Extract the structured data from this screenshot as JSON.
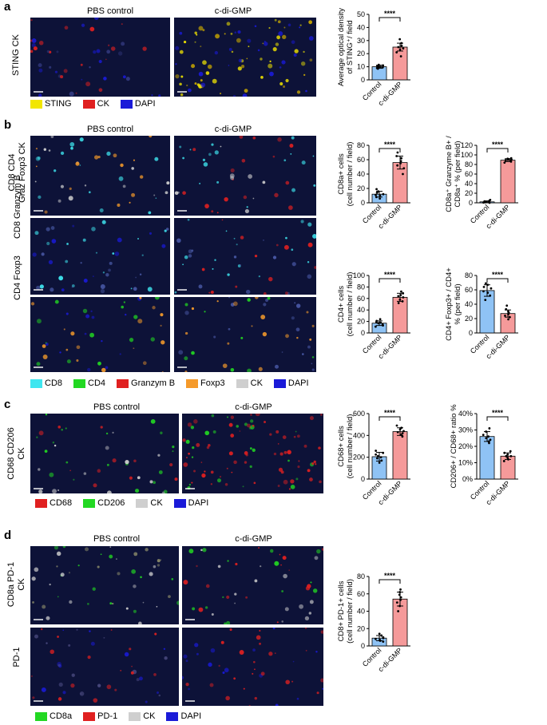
{
  "panels": {
    "a": {
      "letter": "a",
      "col_titles": [
        "PBS control",
        "c-di-GMP"
      ],
      "row_labels": [
        "STING CK"
      ],
      "legend": [
        {
          "label": "STING",
          "color": "#f2e600"
        },
        {
          "label": "CK",
          "color": "#e02020"
        },
        {
          "label": "DAPI",
          "color": "#1a1ad8"
        }
      ]
    },
    "b": {
      "letter": "b",
      "col_titles": [
        "PBS control",
        "c-di-GMP"
      ],
      "row_labels": [
        "CD8 CD4\nGraz Foxp3 CK",
        "CD8 Granzym B",
        "CD4 Foxp3"
      ],
      "legend": [
        {
          "label": "CD8",
          "color": "#3fe6f0"
        },
        {
          "label": "CD4",
          "color": "#22d822"
        },
        {
          "label": "Granzym B",
          "color": "#e02020"
        },
        {
          "label": "Foxp3",
          "color": "#f59a2a"
        },
        {
          "label": "CK",
          "color": "#cfcfcf"
        },
        {
          "label": "DAPI",
          "color": "#1a1ad8"
        }
      ]
    },
    "c": {
      "letter": "c",
      "col_titles": [
        "PBS control",
        "c-di-GMP"
      ],
      "row_labels": [
        "CD68 CD206\nCK"
      ],
      "legend": [
        {
          "label": "CD68",
          "color": "#e02020"
        },
        {
          "label": "CD206",
          "color": "#22d822"
        },
        {
          "label": "CK",
          "color": "#cfcfcf"
        },
        {
          "label": "DAPI",
          "color": "#1a1ad8"
        }
      ]
    },
    "d": {
      "letter": "d",
      "col_titles": [
        "PBS control",
        "c-di-GMP"
      ],
      "row_labels": [
        "CD8a PD-1\nCK",
        "PD-1"
      ],
      "legend": [
        {
          "label": "CD8a",
          "color": "#22d822"
        },
        {
          "label": "PD-1",
          "color": "#e02020"
        },
        {
          "label": "CK",
          "color": "#cfcfcf"
        },
        {
          "label": "DAPI",
          "color": "#1a1ad8"
        }
      ]
    }
  },
  "colors": {
    "control": "#8fc3f5",
    "treatment": "#f59a9a"
  },
  "chart_data": [
    {
      "id": "a1",
      "type": "bar",
      "categories": [
        "Control",
        "c-di-GMP"
      ],
      "values": [
        10,
        25
      ],
      "errors": [
        1.2,
        3
      ],
      "points": [
        [
          8.5,
          9,
          9.5,
          10,
          10,
          10.5,
          11,
          11.5
        ],
        [
          18,
          21,
          23,
          24,
          25,
          26,
          28,
          31
        ]
      ],
      "ylabel": "Average optical density\nof STING⁺/ field",
      "ylim": [
        0,
        50
      ],
      "yticks": [
        0,
        10,
        20,
        30,
        40,
        50
      ],
      "significance": "****"
    },
    {
      "id": "b1",
      "type": "bar",
      "categories": [
        "Control",
        "c-di-GMP"
      ],
      "values": [
        12,
        56
      ],
      "errors": [
        4,
        9
      ],
      "points": [
        [
          6,
          8,
          10,
          11,
          12,
          14,
          16,
          19
        ],
        [
          40,
          48,
          52,
          55,
          58,
          62,
          65,
          70
        ]
      ],
      "ylabel": "CD8a+ cells\n(cell number / field)",
      "ylim": [
        0,
        80
      ],
      "yticks": [
        0,
        20,
        40,
        60,
        80
      ],
      "significance": "****"
    },
    {
      "id": "b2",
      "type": "bar",
      "categories": [
        "Control",
        "c-di-GMP"
      ],
      "values": [
        2,
        89
      ],
      "errors": [
        2,
        3
      ],
      "points": [
        [
          0,
          0.5,
          1,
          1.5,
          2,
          3,
          4,
          6
        ],
        [
          84,
          86,
          88,
          89,
          90,
          91,
          92,
          93
        ]
      ],
      "ylabel": "CD8a⁺ Granzyme B+ /\nCD8a⁺ % (per field)",
      "ylim": [
        0,
        120
      ],
      "yticks": [
        0,
        20,
        40,
        60,
        80,
        100,
        120
      ],
      "significance": "****"
    },
    {
      "id": "b3",
      "type": "bar",
      "categories": [
        "Control",
        "c-di-GMP"
      ],
      "values": [
        17,
        62
      ],
      "errors": [
        4,
        7
      ],
      "points": [
        [
          11,
          13,
          15,
          17,
          18,
          19,
          21,
          24
        ],
        [
          52,
          55,
          58,
          62,
          64,
          66,
          69,
          72
        ]
      ],
      "ylabel": "CD4+ cells\n(cell number / field)",
      "ylim": [
        0,
        100
      ],
      "yticks": [
        0,
        20,
        40,
        60,
        80,
        100
      ],
      "significance": "****"
    },
    {
      "id": "b4",
      "type": "bar",
      "categories": [
        "Control",
        "c-di-GMP"
      ],
      "values": [
        59,
        27
      ],
      "errors": [
        8,
        5
      ],
      "points": [
        [
          46,
          52,
          56,
          58,
          62,
          64,
          67,
          69
        ],
        [
          19,
          22,
          24,
          26,
          28,
          30,
          33,
          38
        ]
      ],
      "ylabel": "CD4+ Foxp3+ / CD4+\n% (per field)",
      "ylim": [
        0,
        80
      ],
      "yticks": [
        0,
        20,
        40,
        60,
        80
      ],
      "significance": "****"
    },
    {
      "id": "c1",
      "type": "bar",
      "categories": [
        "Control",
        "c-di-GMP"
      ],
      "values": [
        205,
        435
      ],
      "errors": [
        40,
        35
      ],
      "points": [
        [
          150,
          170,
          190,
          200,
          210,
          225,
          240,
          260
        ],
        [
          390,
          405,
          420,
          430,
          440,
          455,
          470,
          490
        ]
      ],
      "ylabel": "CD68+ cells\n(cell number / field)",
      "ylim": [
        0,
        600
      ],
      "yticks": [
        0,
        200,
        400,
        600
      ],
      "significance": "****"
    },
    {
      "id": "c2",
      "type": "bar",
      "categories": [
        "Control",
        "c-di-GMP"
      ],
      "values": [
        26,
        14
      ],
      "errors": [
        3,
        2
      ],
      "points": [
        [
          22,
          23,
          24,
          25,
          26,
          27,
          29,
          31
        ],
        [
          11,
          12,
          13,
          14,
          14,
          15,
          16,
          17
        ]
      ],
      "ylabel": "CD206+ / CD68+ ratio %",
      "ylim": [
        0,
        40
      ],
      "yticks": [
        0,
        10,
        20,
        30,
        40
      ],
      "ytick_suffix": "%",
      "significance": "****"
    },
    {
      "id": "d1",
      "type": "bar",
      "categories": [
        "Control",
        "c-di-GMP"
      ],
      "values": [
        9,
        54
      ],
      "errors": [
        3,
        8
      ],
      "points": [
        [
          5,
          6,
          7,
          8,
          9,
          10,
          12,
          14
        ],
        [
          40,
          46,
          50,
          53,
          56,
          59,
          62,
          65
        ]
      ],
      "ylabel": "CD8+ PD-1+ cells\n(cell number / field)",
      "ylim": [
        0,
        80
      ],
      "yticks": [
        0,
        20,
        40,
        60,
        80
      ],
      "significance": "****"
    }
  ]
}
